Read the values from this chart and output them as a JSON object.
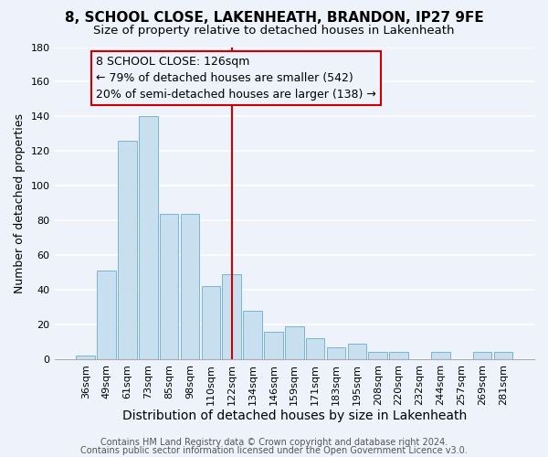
{
  "title": "8, SCHOOL CLOSE, LAKENHEATH, BRANDON, IP27 9FE",
  "subtitle": "Size of property relative to detached houses in Lakenheath",
  "xlabel": "Distribution of detached houses by size in Lakenheath",
  "ylabel": "Number of detached properties",
  "footer_line1": "Contains HM Land Registry data © Crown copyright and database right 2024.",
  "footer_line2": "Contains public sector information licensed under the Open Government Licence v3.0.",
  "bar_labels": [
    "36sqm",
    "49sqm",
    "61sqm",
    "73sqm",
    "85sqm",
    "98sqm",
    "110sqm",
    "122sqm",
    "134sqm",
    "146sqm",
    "159sqm",
    "171sqm",
    "183sqm",
    "195sqm",
    "208sqm",
    "220sqm",
    "232sqm",
    "244sqm",
    "257sqm",
    "269sqm",
    "281sqm"
  ],
  "bar_values": [
    2,
    51,
    126,
    140,
    84,
    84,
    42,
    49,
    28,
    16,
    19,
    12,
    7,
    9,
    4,
    4,
    0,
    4,
    0,
    4,
    4
  ],
  "bar_color": "#c8dff0",
  "bar_edgecolor": "#7ab4d4",
  "highlight_index": 7,
  "highlight_color": "#cc0000",
  "annotation_title": "8 SCHOOL CLOSE: 126sqm",
  "annotation_line1": "← 79% of detached houses are smaller (542)",
  "annotation_line2": "20% of semi-detached houses are larger (138) →",
  "annotation_box_edgecolor": "#cc0000",
  "ylim": [
    0,
    180
  ],
  "yticks": [
    0,
    20,
    40,
    60,
    80,
    100,
    120,
    140,
    160,
    180
  ],
  "background_color": "#eef2fb",
  "grid_color": "#ffffff",
  "title_fontsize": 11,
  "subtitle_fontsize": 9.5,
  "xlabel_fontsize": 10,
  "ylabel_fontsize": 9,
  "tick_fontsize": 8,
  "annotation_fontsize": 9,
  "footer_fontsize": 7
}
